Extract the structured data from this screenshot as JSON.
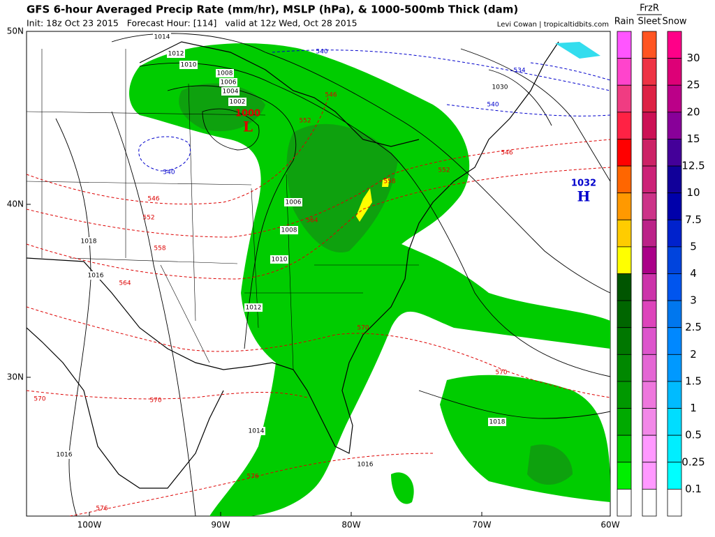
{
  "header": {
    "title": "GFS 6-hour Averaged Precip Rate (mm/hr), MSLP (hPa), & 1000-500mb Thick (dam)",
    "subtitle": "Init: 18z Oct 23 2015   Forecast Hour: [114]   valid at 12z Wed, Oct 28 2015",
    "credit": "Levi Cowan | tropicaltidbits.com"
  },
  "map": {
    "lat_labels": [
      "50N",
      "40N",
      "30N"
    ],
    "lon_labels": [
      "100W",
      "90W",
      "80W",
      "70W",
      "60W"
    ],
    "isobar_labels": [
      "1014",
      "1012",
      "1010",
      "1008",
      "1006",
      "1004",
      "1002",
      "1030",
      "1006",
      "1008",
      "1010",
      "1012",
      "1018",
      "1016",
      "1018",
      "1014",
      "1016",
      "1016"
    ],
    "thickness_red_labels": [
      "546",
      "552",
      "546",
      "552",
      "558",
      "564",
      "546",
      "552",
      "558",
      "564",
      "570",
      "570",
      "570",
      "570",
      "576",
      "576"
    ],
    "thickness_blue_labels": [
      "540",
      "534",
      "540",
      "540"
    ],
    "low": {
      "pressure": "1000",
      "symbol": "L"
    },
    "high": {
      "pressure": "1032",
      "symbol": "H"
    }
  },
  "legend": {
    "group_label": "FrzR",
    "headers": [
      "Rain",
      "Sleet",
      "Snow"
    ],
    "labels": [
      "30",
      "25",
      "20",
      "15",
      "12.5",
      "10",
      "7.5",
      "5",
      "4",
      "3",
      "2.5",
      "2",
      "1.5",
      "1",
      "0.5",
      "0.25",
      "0.1"
    ],
    "rain_colors": [
      "#ff55ff",
      "#ff44cc",
      "#f03c82",
      "#ff2244",
      "#ff0000",
      "#ff6600",
      "#ff9900",
      "#ffcc00",
      "#ffff00",
      "#005500",
      "#006600",
      "#007700",
      "#008800",
      "#009900",
      "#00aa00",
      "#00cc00",
      "#00ee00",
      "#ffffff"
    ],
    "sleet_colors": [
      "#ff5522",
      "#ee3344",
      "#dd2244",
      "#cc1155",
      "#cc2266",
      "#cc2277",
      "#cc3388",
      "#bb2288",
      "#aa0088",
      "#cc33aa",
      "#dd44bb",
      "#dd55cc",
      "#e466d4",
      "#ee77dd",
      "#f288e8",
      "#ff99ff",
      "#ff99ff",
      "#ffffff"
    ],
    "snow_colors": [
      "#ff0088",
      "#dd0077",
      "#bb0088",
      "#880099",
      "#440099",
      "#110099",
      "#0000aa",
      "#0022cc",
      "#0044dd",
      "#0055ee",
      "#0077ee",
      "#0088ff",
      "#0099ff",
      "#00bbff",
      "#00ddff",
      "#00eeff",
      "#00ffff",
      "#ffffff"
    ]
  }
}
